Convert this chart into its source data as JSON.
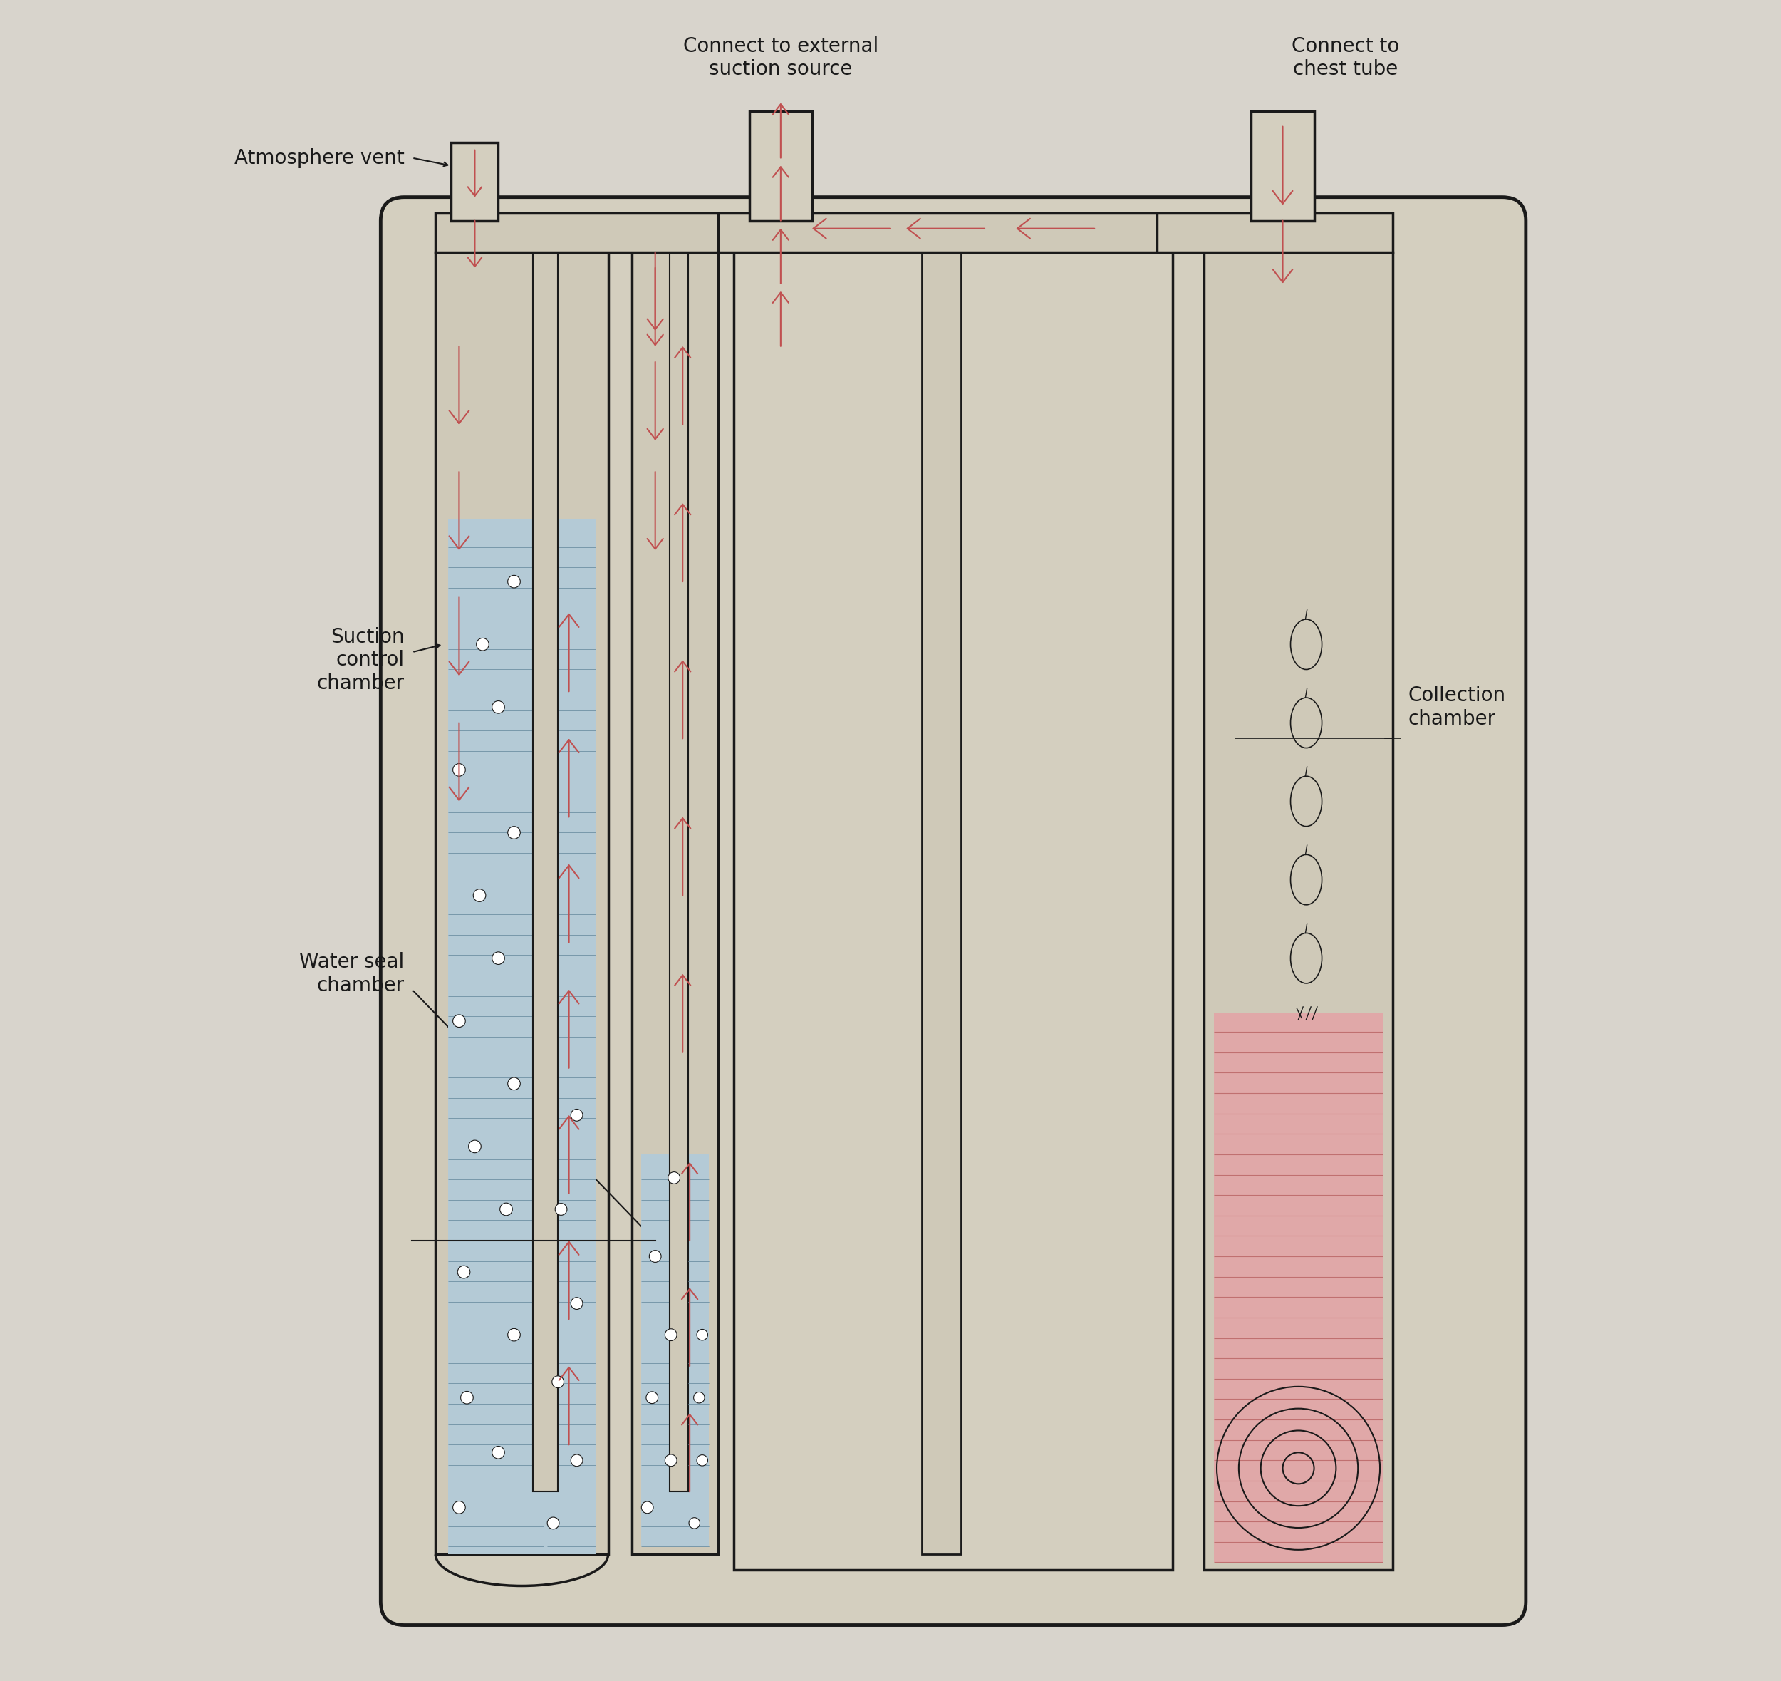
{
  "bg_color": "#d8d4cc",
  "device_fill": "#d4cfbf",
  "chamber_inner": "#cfc9b8",
  "water_color": "#b4cad6",
  "water_line_color": "#7898aa",
  "fluid_color": "#e0a8a8",
  "fluid_line_color": "#c07070",
  "arrow_color": "#c05050",
  "line_color": "#1a1a1a",
  "text_color": "#1a1a1a",
  "label_suction": "Suction\ncontrol\nchamber",
  "label_water": "Water seal\nchamber",
  "label_collection": "Collection\nchamber",
  "label_ext_suction": "Connect to external\nsuction source",
  "label_chest": "Connect to\nchest tube",
  "label_atm": "Atmosphere vent"
}
